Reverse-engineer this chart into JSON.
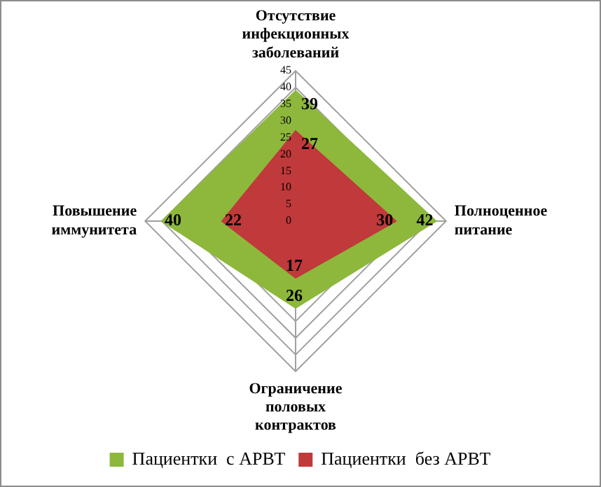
{
  "chart_data": {
    "type": "radar",
    "categories": [
      "Отсутствие инфекционных заболеваний",
      "Полноценное питание",
      "Ограничение половых контрактов",
      "Повышение иммунитета"
    ],
    "series": [
      {
        "name": "Пациентки  с АРВТ",
        "color": "#8db83c",
        "values": [
          39,
          42,
          26,
          40
        ]
      },
      {
        "name": "Пациентки  без АРВТ",
        "color": "#c0393b",
        "values": [
          27,
          30,
          17,
          22
        ]
      }
    ],
    "ylim": [
      0,
      45
    ],
    "yticks": [
      0,
      5,
      10,
      15,
      20,
      25,
      30,
      35,
      40,
      45
    ],
    "grid": true,
    "legend": "bottom",
    "data_labels": true,
    "marker": "none"
  }
}
